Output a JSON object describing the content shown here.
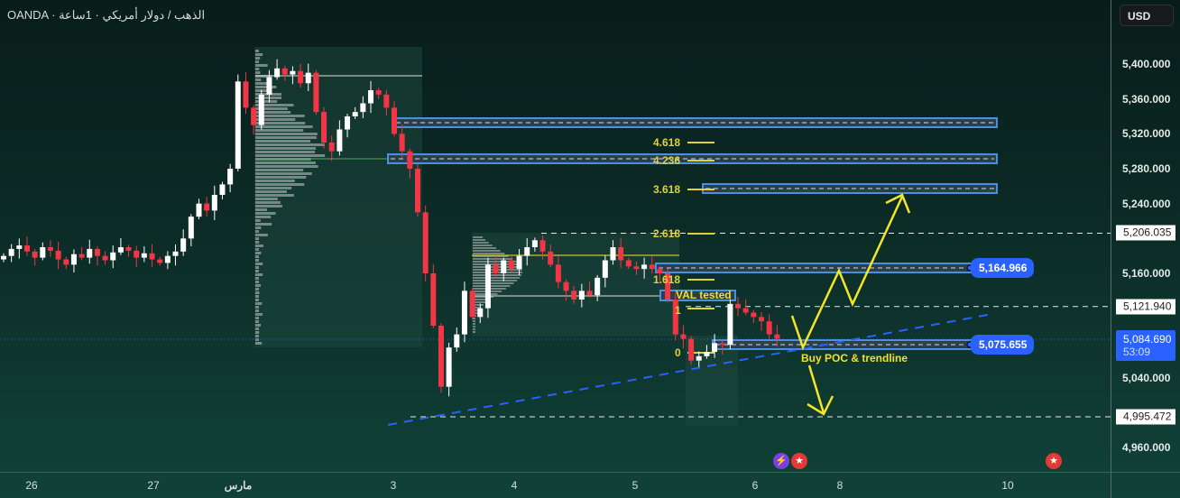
{
  "header": {
    "title": "OANDA · الذهب / دولار أمريكي · 1ساعة",
    "currency": "USD"
  },
  "price_axis": {
    "labels": [
      "5,400.000",
      "5,360.000",
      "5,320.000",
      "5,280.000",
      "5,240.000",
      "5,160.000",
      "5,040.000",
      "4,960.000"
    ],
    "tags": [
      "5,206.035",
      "5,121.940",
      "4,995.472"
    ],
    "current_price": "5,084.690",
    "countdown": "53:09"
  },
  "time_axis": {
    "labels": [
      "26",
      "27",
      "مارس",
      "3",
      "4",
      "5",
      "6",
      "8",
      "10"
    ]
  },
  "annotations": {
    "zone_tags": [
      "5,164.966",
      "5,075.655"
    ],
    "fib_levels": [
      "4.618",
      "4.236",
      "3.618",
      "2.618",
      "1.618",
      "1",
      "0"
    ],
    "val_label": "VAL tested",
    "note": "Buy POC & trendline"
  },
  "colors": {
    "up": "#ffffff",
    "down": "#f23645",
    "zone": "#4a90e2",
    "fib": "#e0d23a",
    "trend": "#2962ff",
    "arrow": "#f5e625",
    "tag": "#2962ff"
  },
  "chart_data": {
    "type": "candlestick",
    "timeframe": "1h",
    "ylim": [
      4940,
      5430
    ],
    "closes": [
      5180,
      5188,
      5192,
      5185,
      5178,
      5190,
      5186,
      5176,
      5170,
      5182,
      5178,
      5188,
      5180,
      5175,
      5184,
      5190,
      5186,
      5178,
      5183,
      5176,
      5172,
      5180,
      5185,
      5200,
      5225,
      5240,
      5232,
      5250,
      5262,
      5280,
      5380,
      5350,
      5330,
      5365,
      5385,
      5395,
      5388,
      5392,
      5378,
      5390,
      5345,
      5310,
      5300,
      5325,
      5340,
      5345,
      5355,
      5370,
      5365,
      5350,
      5320,
      5300,
      5280,
      5230,
      5160,
      5100,
      5030,
      5075,
      5090,
      5140,
      5110,
      5120,
      5170,
      5160,
      5175,
      5165,
      5180,
      5190,
      5198,
      5185,
      5170,
      5150,
      5140,
      5130,
      5140,
      5135,
      5155,
      5175,
      5190,
      5175,
      5168,
      5165,
      5170,
      5165,
      5160,
      5130,
      5090,
      5085,
      5060,
      5065,
      5070,
      5080,
      5078,
      5125,
      5120,
      5115,
      5110,
      5105,
      5090,
      5085
    ],
    "horizontal_levels": [
      5206.035,
      5121.94,
      4995.472
    ],
    "zones": [
      5164.966,
      5075.655
    ]
  }
}
